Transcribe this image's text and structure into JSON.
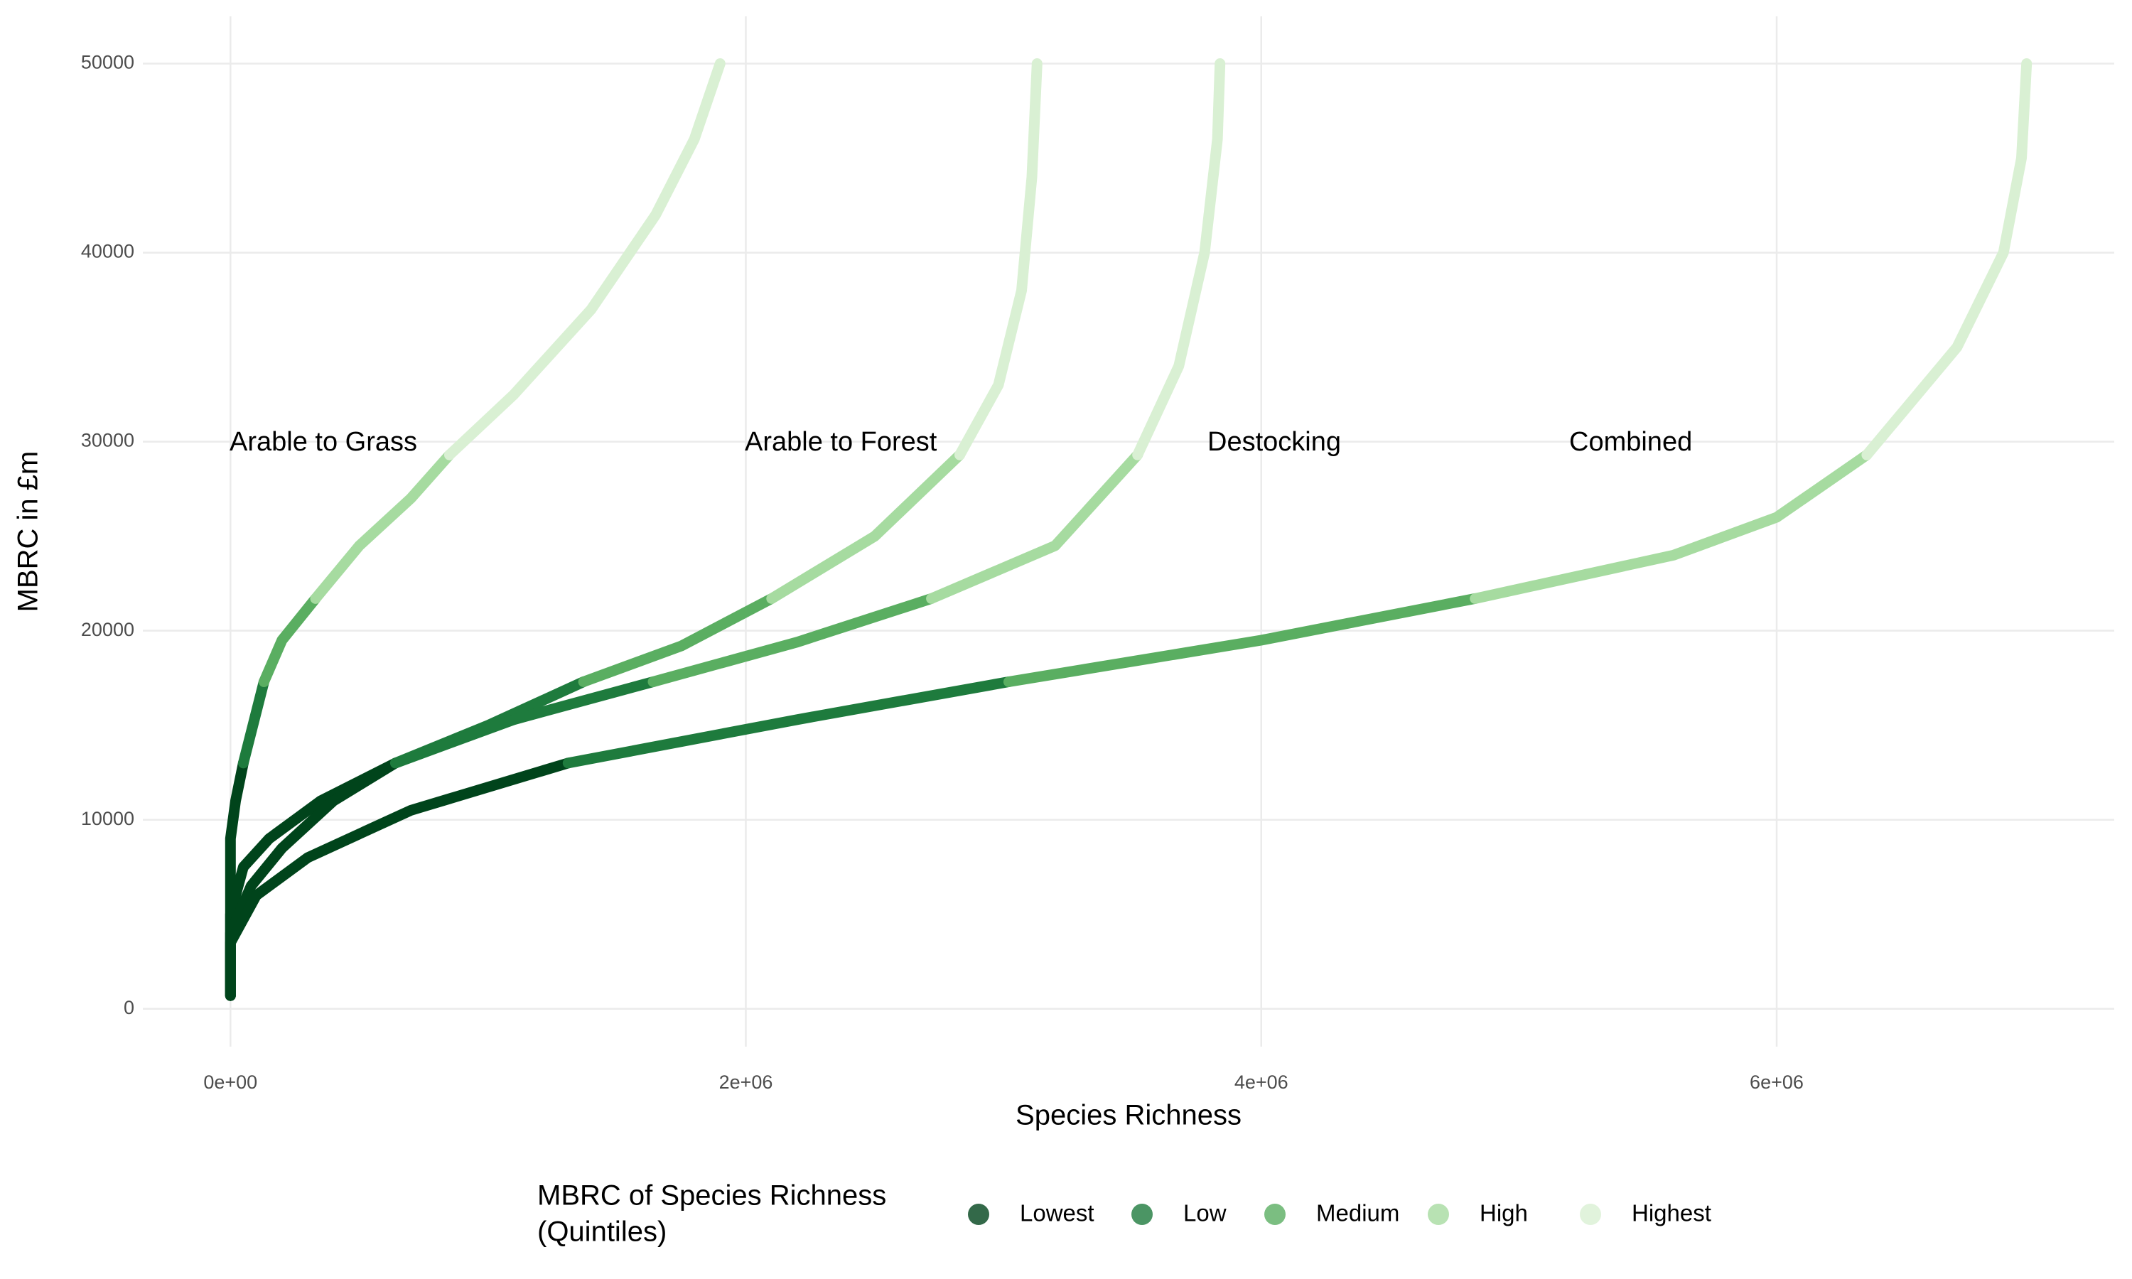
{
  "chart_data": {
    "type": "line",
    "x_label": "Species Richness",
    "y_label": "MBRC in £m",
    "xlim": [
      -340000,
      7310000
    ],
    "ylim": [
      -2000,
      52500
    ],
    "xticks": [
      {
        "value": 0,
        "label": "0e+00"
      },
      {
        "value": 2000000,
        "label": "2e+06"
      },
      {
        "value": 4000000,
        "label": "4e+06"
      },
      {
        "value": 6000000,
        "label": "6e+06"
      }
    ],
    "yticks": [
      0,
      10000,
      20000,
      30000,
      40000,
      50000
    ],
    "grid": true,
    "legend": {
      "title": [
        "MBRC of Species Richness",
        "(Quintiles)"
      ],
      "position": "bottom",
      "items": [
        {
          "name": "Lowest",
          "color": "#00441b"
        },
        {
          "name": "Low",
          "color": "#1e7b3d"
        },
        {
          "name": "Medium",
          "color": "#5aae61"
        },
        {
          "name": "High",
          "color": "#a6dba0"
        },
        {
          "name": "Highest",
          "color": "#d9f0d3"
        }
      ]
    },
    "curves": [
      {
        "label": "Arable to Grass",
        "segments": [
          {
            "x": [
              0,
              0,
              0,
              20000,
              50000
            ],
            "y": [
              700,
              5000,
              9000,
              11000,
              13000
            ]
          },
          {
            "x": [
              50000,
              130000
            ],
            "y": [
              13000,
              17300
            ]
          },
          {
            "x": [
              130000,
              200000,
              330000
            ],
            "y": [
              17300,
              19500,
              21700
            ]
          },
          {
            "x": [
              330000,
              500000,
              700000,
              850000
            ],
            "y": [
              21700,
              24500,
              27000,
              29300
            ]
          },
          {
            "x": [
              850000,
              1100000,
              1400000,
              1650000,
              1800000,
              1900000
            ],
            "y": [
              29300,
              32500,
              37000,
              42000,
              46000,
              50000
            ]
          }
        ]
      },
      {
        "label": "Arable to Forest",
        "segments": [
          {
            "x": [
              0,
              0,
              50000,
              150000,
              350000,
              640000
            ],
            "y": [
              700,
              5000,
              7500,
              9000,
              11000,
              13000
            ]
          },
          {
            "x": [
              640000,
              1000000,
              1370000
            ],
            "y": [
              13000,
              15000,
              17300
            ]
          },
          {
            "x": [
              1370000,
              1750000,
              2100000
            ],
            "y": [
              17300,
              19200,
              21700
            ]
          },
          {
            "x": [
              2100000,
              2500000,
              2830000
            ],
            "y": [
              21700,
              25000,
              29300
            ]
          },
          {
            "x": [
              2830000,
              2980000,
              3070000,
              3110000,
              3130000
            ],
            "y": [
              29300,
              33000,
              38000,
              44000,
              50000
            ]
          }
        ]
      },
      {
        "label": "Destocking",
        "segments": [
          {
            "x": [
              0,
              0,
              80000,
              200000,
              400000,
              640000
            ],
            "y": [
              700,
              4000,
              6500,
              8500,
              11000,
              13000
            ]
          },
          {
            "x": [
              640000,
              1100000,
              1640000
            ],
            "y": [
              13000,
              15300,
              17300
            ]
          },
          {
            "x": [
              1640000,
              2200000,
              2720000
            ],
            "y": [
              17300,
              19400,
              21700
            ]
          },
          {
            "x": [
              2720000,
              3200000,
              3520000
            ],
            "y": [
              21700,
              24500,
              29300
            ]
          },
          {
            "x": [
              3520000,
              3680000,
              3780000,
              3830000,
              3840000
            ],
            "y": [
              29300,
              34000,
              40000,
              46000,
              50000
            ]
          }
        ]
      },
      {
        "label": "Combined",
        "segments": [
          {
            "x": [
              0,
              0,
              100000,
              300000,
              700000,
              1310000
            ],
            "y": [
              700,
              3500,
              6000,
              8000,
              10500,
              13000
            ]
          },
          {
            "x": [
              1310000,
              2200000,
              3020000
            ],
            "y": [
              13000,
              15300,
              17300
            ]
          },
          {
            "x": [
              3020000,
              4000000,
              4830000
            ],
            "y": [
              17300,
              19500,
              21700
            ]
          },
          {
            "x": [
              4830000,
              5600000,
              6000000,
              6350000
            ],
            "y": [
              21700,
              24000,
              26000,
              29300
            ]
          },
          {
            "x": [
              6350000,
              6700000,
              6880000,
              6950000,
              6970000
            ],
            "y": [
              29300,
              35000,
              40000,
              45000,
              50000
            ]
          }
        ]
      }
    ]
  }
}
